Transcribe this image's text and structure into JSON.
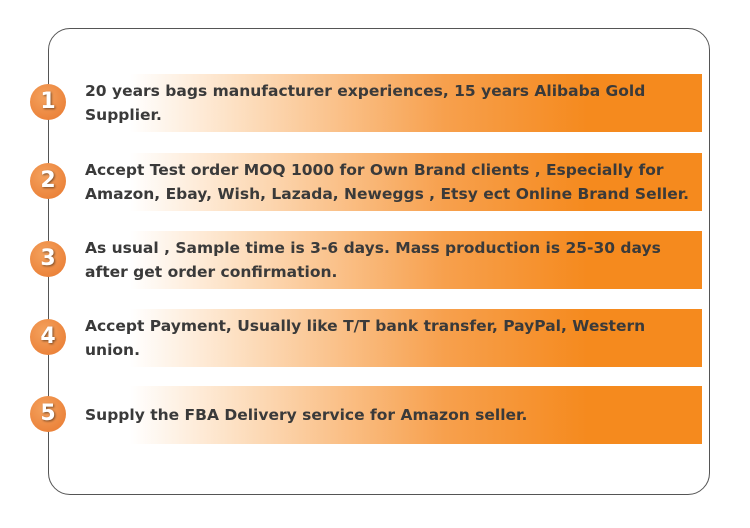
{
  "items": [
    {
      "number": "1",
      "text": "20 years bags manufacturer experiences, 15 years Alibaba Gold Supplier."
    },
    {
      "number": "2",
      "text": "Accept Test order MOQ 1000 for Own Brand clients , Especially for Amazon, Ebay, Wish, Lazada, Neweggs , Etsy ect Online Brand Seller."
    },
    {
      "number": "3",
      "text": "As usual , Sample time is 3-6 days. Mass production is 25-30 days after get order confirmation."
    },
    {
      "number": "4",
      "text": "Accept Payment, Usually like T/T bank transfer, PayPal, Western union."
    },
    {
      "number": "5",
      "text": "Supply the FBA Delivery service for Amazon seller."
    }
  ],
  "colors": {
    "accent": "#f58a1e",
    "circle": "#e8782e",
    "text": "#3a3a3a"
  }
}
